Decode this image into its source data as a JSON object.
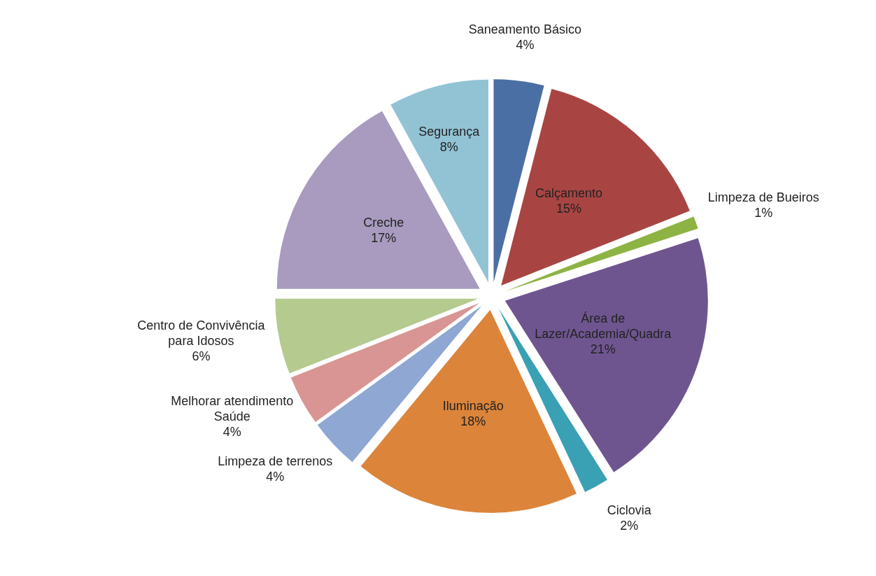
{
  "chart_data": {
    "type": "pie",
    "categories": [
      "Saneamento Básico",
      "Calçamento",
      "Limpeza de Bueiros",
      "Área de Lazer/Academia/Quadra",
      "Ciclovia",
      "Iluminação",
      "Limpeza de terrenos",
      "Melhorar atendimento Saúde",
      "Centro de Convivência para Idosos",
      "Creche",
      "Segurança"
    ],
    "values": [
      4,
      15,
      1,
      21,
      2,
      18,
      4,
      4,
      6,
      17,
      8
    ],
    "value_labels": [
      "4%",
      "15%",
      "1%",
      "21%",
      "2%",
      "18%",
      "4%",
      "4%",
      "6%",
      "17%",
      "8%"
    ],
    "colors": [
      "#4a6fa5",
      "#a84543",
      "#8db343",
      "#6f5590",
      "#3aa0b3",
      "#dc843a",
      "#8ea7d3",
      "#d99593",
      "#b4ca8f",
      "#a89bbf",
      "#92c3d5"
    ]
  }
}
